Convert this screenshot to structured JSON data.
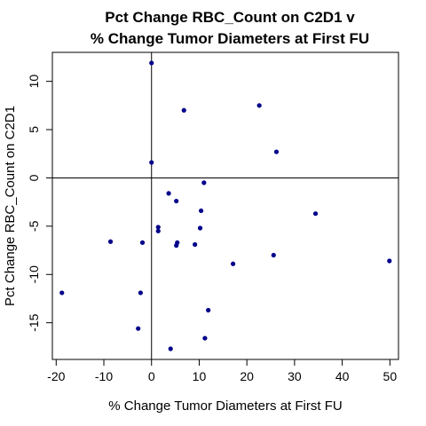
{
  "chart_data": {
    "type": "scatter",
    "title": [
      "Pct Change RBC_Count on C2D1 v",
      "% Change Tumor Diameters at First FU"
    ],
    "xlabel": "% Change Tumor Diameters at First FU",
    "ylabel": "Pct Change RBC_Count on C2D1",
    "xlim": [
      -20.8,
      51.8
    ],
    "ylim": [
      -18.8,
      13
    ],
    "xticks": [
      -20,
      -10,
      0,
      10,
      20,
      30,
      40,
      50
    ],
    "yticks": [
      -15,
      -10,
      -5,
      0,
      5,
      10
    ],
    "reference_lines": {
      "x": 0,
      "y": 0
    },
    "grid": false,
    "legend": "none",
    "point_color": "#00008b",
    "points": [
      {
        "x": 0,
        "y": 11.9
      },
      {
        "x": 6.8,
        "y": 7
      },
      {
        "x": 22.6,
        "y": 7.5
      },
      {
        "x": 26.2,
        "y": 2.7
      },
      {
        "x": 0,
        "y": 1.6
      },
      {
        "x": 11,
        "y": -0.5
      },
      {
        "x": 3.6,
        "y": -1.6
      },
      {
        "x": 5.2,
        "y": -2.4
      },
      {
        "x": 10.4,
        "y": -3.4
      },
      {
        "x": 34.4,
        "y": -3.7
      },
      {
        "x": 1.4,
        "y": -5.1
      },
      {
        "x": 1.4,
        "y": -5.5
      },
      {
        "x": 10.2,
        "y": -5.2
      },
      {
        "x": 5.4,
        "y": -6.7
      },
      {
        "x": 5.2,
        "y": -7
      },
      {
        "x": 9.1,
        "y": -6.9
      },
      {
        "x": -8.6,
        "y": -6.6
      },
      {
        "x": -1.9,
        "y": -6.7
      },
      {
        "x": 25.6,
        "y": -8
      },
      {
        "x": 17.1,
        "y": -8.9
      },
      {
        "x": 49.9,
        "y": -8.6
      },
      {
        "x": -18.8,
        "y": -11.9
      },
      {
        "x": -2.3,
        "y": -11.9
      },
      {
        "x": 11.9,
        "y": -13.7
      },
      {
        "x": -2.8,
        "y": -15.6
      },
      {
        "x": 11.2,
        "y": -16.6
      },
      {
        "x": 4,
        "y": -17.7
      }
    ]
  }
}
